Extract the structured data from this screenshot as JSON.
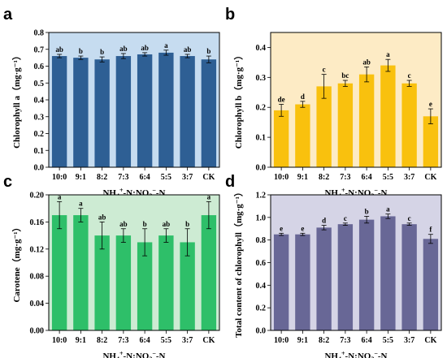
{
  "chart_data": [
    {
      "panel": "a",
      "type": "bar",
      "categories": [
        "10:0",
        "9:1",
        "8:2",
        "7:3",
        "6:4",
        "5:5",
        "3:7",
        "CK"
      ],
      "values": [
        0.66,
        0.65,
        0.64,
        0.66,
        0.67,
        0.68,
        0.66,
        0.64
      ],
      "errors": [
        0.01,
        0.01,
        0.015,
        0.015,
        0.01,
        0.015,
        0.01,
        0.02
      ],
      "significance": [
        "ab",
        "b",
        "b",
        "ab",
        "ab",
        "a",
        "ab",
        "b"
      ],
      "title": "",
      "xlabel": "NH4+-N:NO3−-N",
      "xlabel_parts": {
        "a": "NH",
        "b": "4",
        "c": "+",
        "d": "-N:NO",
        "e": "3",
        "f": "−",
        "g": "-N"
      },
      "ylabel": "Chlorophyll a（mg·g⁻¹）",
      "ylim": [
        0,
        0.8
      ],
      "yticks": [
        "0.0",
        "0.1",
        "0.2",
        "0.3",
        "0.4",
        "0.5",
        "0.6",
        "0.7",
        "0.8"
      ],
      "bar_color": "#2e5f94",
      "background_color": "#c6dcf0",
      "grid": false
    },
    {
      "panel": "b",
      "type": "bar",
      "categories": [
        "10:0",
        "9:1",
        "8:2",
        "7:3",
        "6:4",
        "5:5",
        "3:7",
        "CK"
      ],
      "values": [
        0.19,
        0.21,
        0.27,
        0.28,
        0.31,
        0.34,
        0.28,
        0.17
      ],
      "errors": [
        0.02,
        0.01,
        0.04,
        0.01,
        0.025,
        0.02,
        0.01,
        0.025
      ],
      "significance": [
        "de",
        "d",
        "c",
        "bc",
        "ab",
        "a",
        "c",
        "e"
      ],
      "title": "",
      "xlabel": "NH4+-N:NO3−-N",
      "xlabel_parts": {
        "a": "NH",
        "b": "4",
        "c": "+",
        "d": "-N:NO",
        "e": "3",
        "f": "−",
        "g": "-N"
      },
      "ylabel": "Chlorophyll b（mg·g⁻¹）",
      "ylim": [
        0,
        0.45
      ],
      "yticks": [
        "0.0",
        "0.1",
        "0.2",
        "0.3",
        "0.4"
      ],
      "yticks_values": [
        0,
        0.1,
        0.2,
        0.3,
        0.4
      ],
      "bar_color": "#f9c10e",
      "background_color": "#fdebc5",
      "grid": false
    },
    {
      "panel": "c",
      "type": "bar",
      "categories": [
        "10:0",
        "9:1",
        "8:2",
        "7:3",
        "6:4",
        "5:5",
        "3:7",
        "CK"
      ],
      "values": [
        0.17,
        0.17,
        0.14,
        0.14,
        0.13,
        0.14,
        0.13,
        0.17
      ],
      "errors": [
        0.02,
        0.01,
        0.02,
        0.01,
        0.02,
        0.01,
        0.02,
        0.02
      ],
      "significance": [
        "a",
        "a",
        "ab",
        "ab",
        "b",
        "ab",
        "b",
        "a"
      ],
      "title": "",
      "xlabel": "NH4+-N:NO3−-N",
      "xlabel_parts": {
        "a": "NH",
        "b": "4",
        "c": "+",
        "d": "-N:NO",
        "e": "3",
        "f": "−",
        "g": "-N"
      },
      "ylabel": "Carotene（mg·g⁻¹）",
      "ylim": [
        0,
        0.2
      ],
      "yticks": [
        "0.00",
        "0.04",
        "0.08",
        "0.12",
        "0.16",
        "0.20"
      ],
      "bar_color": "#2ebf69",
      "background_color": "#cdebd3",
      "grid": false
    },
    {
      "panel": "d",
      "type": "bar",
      "categories": [
        "10:0",
        "9:1",
        "8:2",
        "7:3",
        "6:4",
        "5:5",
        "3:7",
        "CK"
      ],
      "values": [
        0.85,
        0.85,
        0.91,
        0.94,
        0.98,
        1.01,
        0.94,
        0.81
      ],
      "errors": [
        0.01,
        0.01,
        0.02,
        0.01,
        0.03,
        0.02,
        0.01,
        0.04
      ],
      "significance": [
        "e",
        "e",
        "d",
        "c",
        "b",
        "a",
        "c",
        "f"
      ],
      "title": "",
      "xlabel": "NH4+-N:NO3−-N",
      "xlabel_parts": {
        "a": "NH",
        "b": "4",
        "c": "+",
        "d": "-N:NO",
        "e": "3",
        "f": "−",
        "g": "-N"
      },
      "ylabel": "Total content of chlorophyll（mg·g⁻¹）",
      "ylim": [
        0,
        1.2
      ],
      "yticks": [
        "0.0",
        "0.2",
        "0.4",
        "0.6",
        "0.8",
        "1.0",
        "1.2"
      ],
      "bar_color": "#686796",
      "background_color": "#d5d4e6",
      "grid": false
    }
  ]
}
